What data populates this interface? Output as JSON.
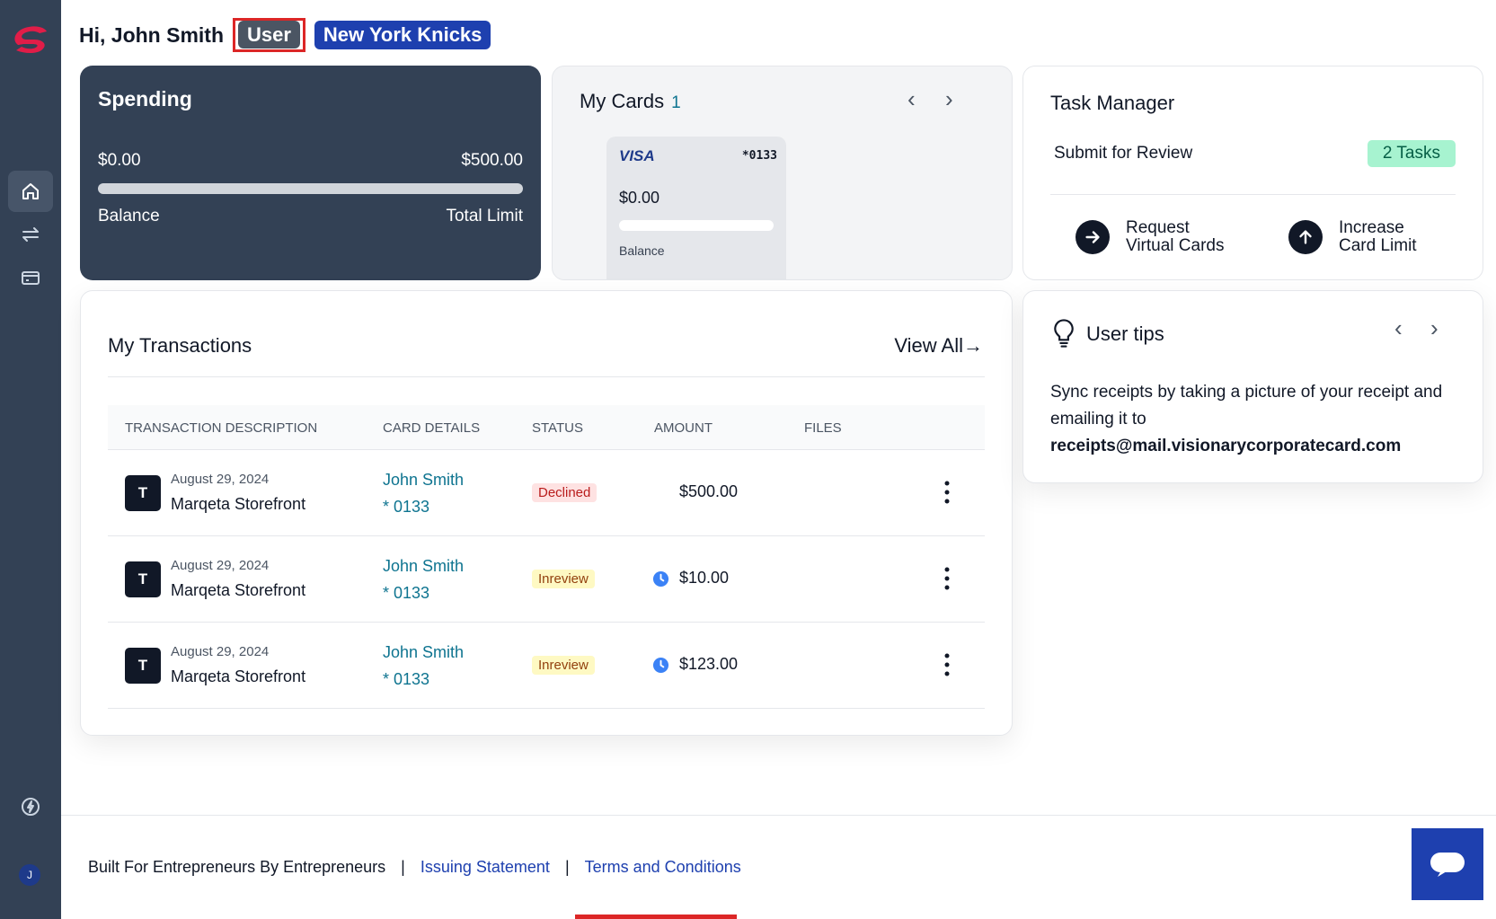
{
  "header": {
    "greeting": "Hi, John Smith",
    "role_badge": "User",
    "team_badge": "New York Knicks"
  },
  "sidebar": {
    "items": [
      {
        "name": "home",
        "active": true
      },
      {
        "name": "transactions",
        "active": false
      },
      {
        "name": "cards",
        "active": false
      }
    ],
    "avatar_initial": "J"
  },
  "spending": {
    "title": "Spending",
    "balance_value": "$0.00",
    "limit_value": "$500.00",
    "balance_label": "Balance",
    "limit_label": "Total Limit",
    "progress_fraction": 0
  },
  "my_cards": {
    "title": "My Cards",
    "count": "1",
    "card": {
      "brand": "VISA",
      "last4": "*0133",
      "amount": "$0.00",
      "label": "Balance"
    }
  },
  "task_manager": {
    "title": "Task Manager",
    "submit_label": "Submit for Review",
    "tasks_badge": "2 Tasks",
    "action_1_line1": "Request",
    "action_1_line2": "Virtual Cards",
    "action_2_line1": "Increase",
    "action_2_line2": "Card Limit"
  },
  "transactions": {
    "title": "My Transactions",
    "view_all": "View All",
    "columns": [
      "Transaction Description",
      "Card Details",
      "Status",
      "Amount",
      "Files"
    ],
    "rows": [
      {
        "initial": "T",
        "date": "August 29, 2024",
        "merchant": "Marqeta Storefront",
        "cardholder": "John Smith",
        "card_last": "* 0133",
        "status": "Declined",
        "amount": "$500.00",
        "pending": false
      },
      {
        "initial": "T",
        "date": "August 29, 2024",
        "merchant": "Marqeta Storefront",
        "cardholder": "John Smith",
        "card_last": "* 0133",
        "status": "Inreview",
        "amount": "$10.00",
        "pending": true
      },
      {
        "initial": "T",
        "date": "August 29, 2024",
        "merchant": "Marqeta Storefront",
        "cardholder": "John Smith",
        "card_last": "* 0133",
        "status": "Inreview",
        "amount": "$123.00",
        "pending": true
      }
    ]
  },
  "tips": {
    "title": "User tips",
    "text": "Sync receipts by taking a picture of your receipt and emailing it to",
    "email": "receipts@mail.visionarycorporatecard.com"
  },
  "footer": {
    "tagline": "Built For Entrepreneurs By Entrepreneurs",
    "sep": "|",
    "link_1": "Issuing Statement",
    "link_2": "Terms and Conditions"
  },
  "colors": {
    "sidebar": "#334155",
    "accent": "#1e40af",
    "teal": "#0e7490",
    "declined": "#b91c1c",
    "highlight": "#dc2626"
  }
}
